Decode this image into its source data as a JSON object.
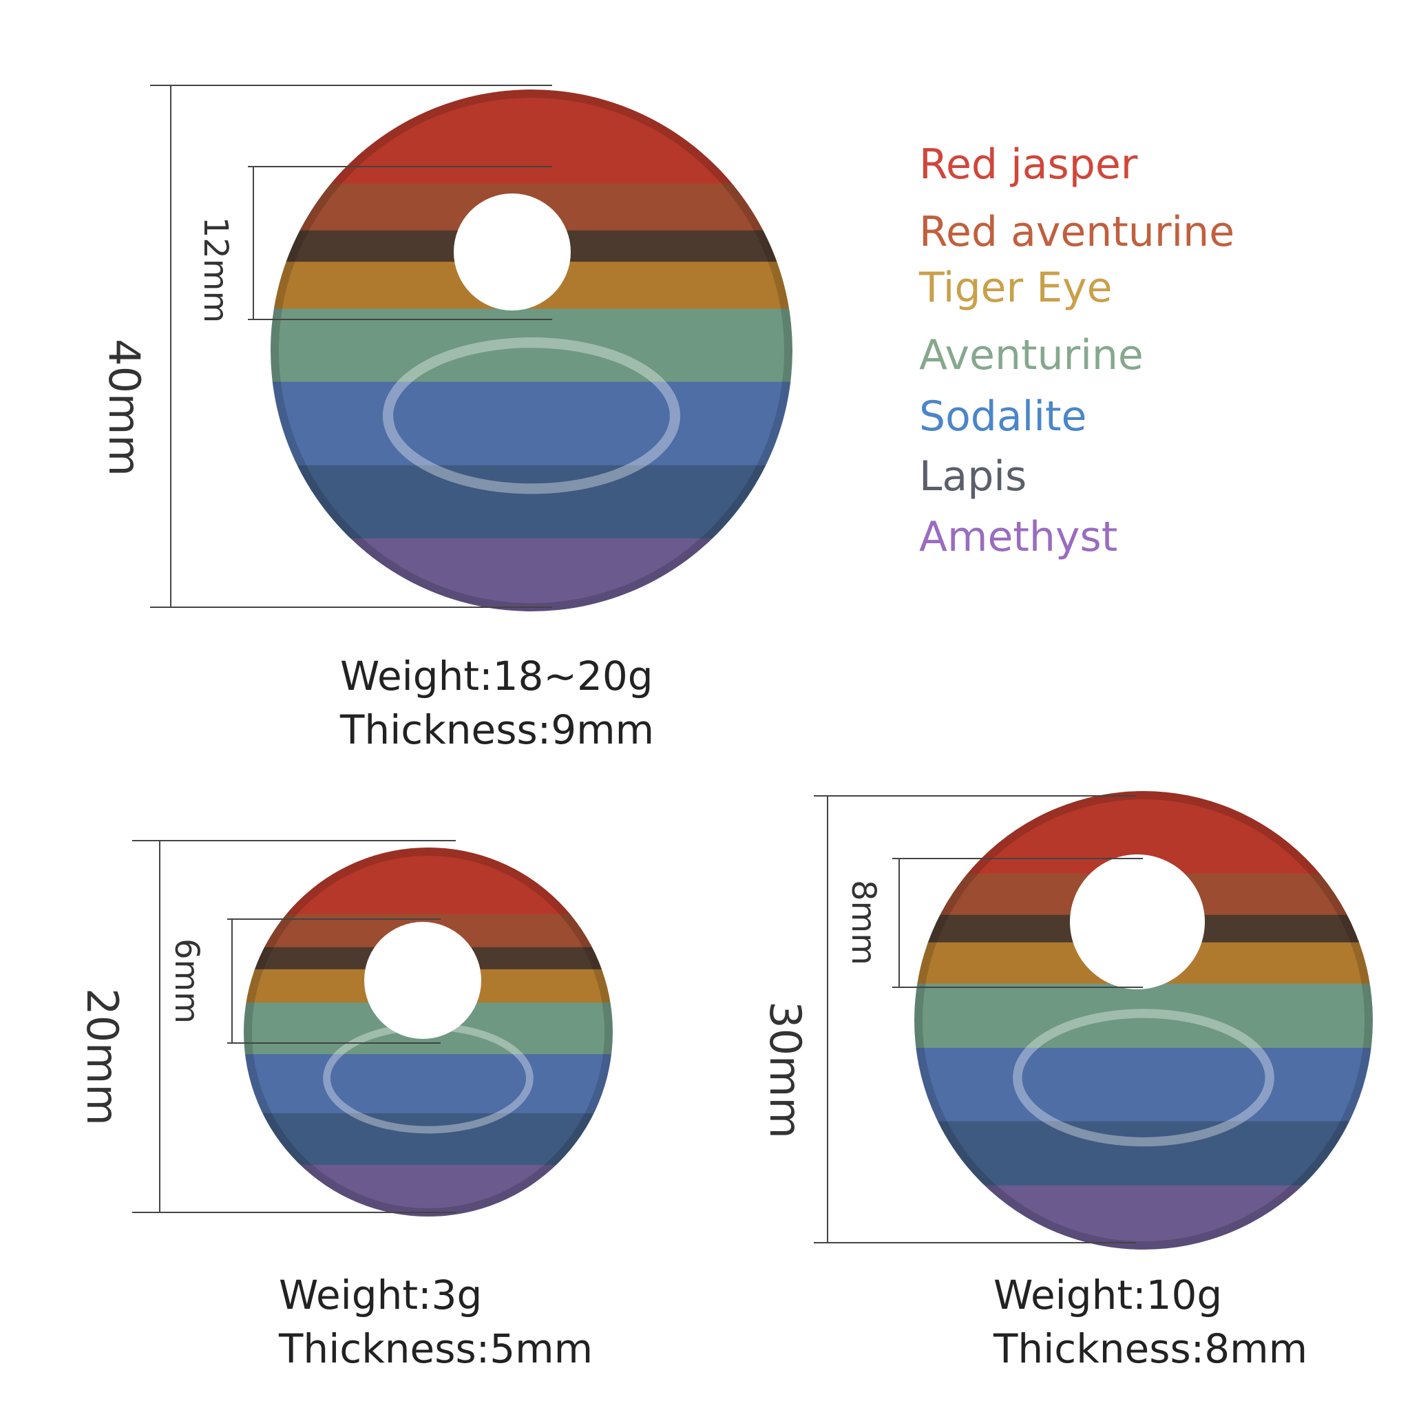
{
  "legend": [
    {
      "label": "Red jasper",
      "color": "#d0463a"
    },
    {
      "label": "Red aventurine",
      "color": "#c0603e"
    },
    {
      "label": "Tiger Eye",
      "color": "#c9a04a"
    },
    {
      "label": "Aventurine",
      "color": "#86a88e"
    },
    {
      "label": "Sodalite",
      "color": "#4a86c8"
    },
    {
      "label": "Lapis",
      "color": "#5a5f6a"
    },
    {
      "label": "Amethyst",
      "color": "#9a6cc0"
    }
  ],
  "pendants": [
    {
      "diameter": "40mm",
      "hole": "12mm",
      "weight": "Weight:18~20g",
      "thickness": "Thickness:9mm"
    },
    {
      "diameter": "20mm",
      "hole": "6mm",
      "weight": "Weight:3g",
      "thickness": "Thickness:5mm"
    },
    {
      "diameter": "30mm",
      "hole": "8mm",
      "weight": "Weight:10g",
      "thickness": "Thickness:8mm"
    }
  ]
}
